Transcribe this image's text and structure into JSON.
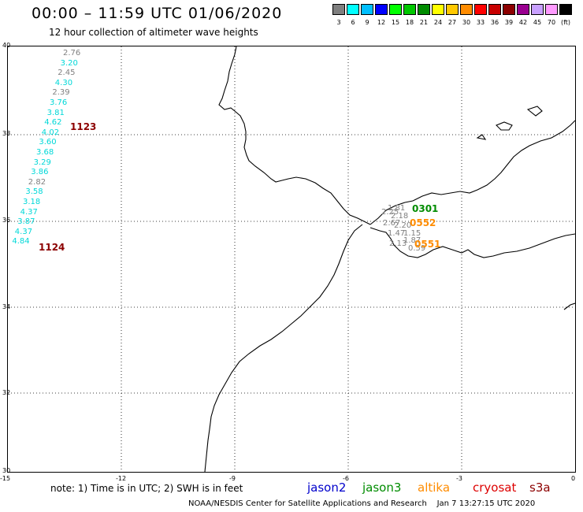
{
  "header": {
    "title": "00:00 – 11:59 UTC 01/06/2020",
    "subtitle": "12 hour collection of altimeter wave heights"
  },
  "color_scale": {
    "colors": [
      "#7f7f7f",
      "#00ffff",
      "#00bfff",
      "#0000ff",
      "#00ff00",
      "#00c800",
      "#008c00",
      "#ffff00",
      "#ffc800",
      "#ff8c00",
      "#ff0000",
      "#c80000",
      "#8c0000",
      "#9a0090",
      "#c8a0ff",
      "#ff9bff",
      "#000000"
    ],
    "labels": [
      "3",
      "6",
      "9",
      "12",
      "15",
      "18",
      "21",
      "24",
      "27",
      "30",
      "33",
      "36",
      "39",
      "42",
      "45",
      "70",
      "(ft)"
    ]
  },
  "axes": {
    "lat_labels": [
      "40",
      "38",
      "36",
      "34",
      "32",
      "30"
    ],
    "lon_labels": [
      "-15",
      "-12",
      "-9",
      "-6",
      "-3",
      "0"
    ]
  },
  "west_track": {
    "values": [
      {
        "v": "2.76",
        "c": "#808080"
      },
      {
        "v": "3.20",
        "c": "#00d8d8"
      },
      {
        "v": "2.45",
        "c": "#808080"
      },
      {
        "v": "4.30",
        "c": "#00d8d8"
      },
      {
        "v": "2.39",
        "c": "#808080"
      },
      {
        "v": "3.76",
        "c": "#00d8d8"
      },
      {
        "v": "3.81",
        "c": "#00d8d8"
      },
      {
        "v": "4.62",
        "c": "#00d8d8"
      },
      {
        "v": "4.02",
        "c": "#00d8d8"
      },
      {
        "v": "3.60",
        "c": "#00d8d8"
      },
      {
        "v": "3.68",
        "c": "#00d8d8"
      },
      {
        "v": "3.29",
        "c": "#00d8d8"
      },
      {
        "v": "3.86",
        "c": "#00d8d8"
      },
      {
        "v": "2.82",
        "c": "#808080"
      },
      {
        "v": "3.58",
        "c": "#00d8d8"
      },
      {
        "v": "3.18",
        "c": "#00d8d8"
      },
      {
        "v": "4.37",
        "c": "#00d8d8"
      },
      {
        "v": "3.87",
        "c": "#00d8d8"
      },
      {
        "v": "4.37",
        "c": "#00d8d8"
      },
      {
        "v": "4.84",
        "c": "#00d8d8"
      }
    ],
    "time_labels": [
      "1123",
      "1124"
    ]
  },
  "med_track": {
    "values": [
      "1.81",
      "2.25",
      "2.18",
      "2.67",
      "2.20",
      "1.47",
      "1.15",
      "2.13",
      "1.87",
      "0.59"
    ],
    "time_labels": [
      {
        "text": "0301",
        "color": "#008c00"
      },
      {
        "text": "0552",
        "color": "#ff8c00"
      },
      {
        "text": "0551",
        "color": "#ff8c00"
      }
    ]
  },
  "footer": {
    "note": "note: 1) Time is in UTC; 2) SWH is in feet",
    "satellites": [
      {
        "name": "jason2",
        "color": "#0000cc"
      },
      {
        "name": "jason3",
        "color": "#008c00"
      },
      {
        "name": "altika",
        "color": "#ff8c00"
      },
      {
        "name": "cryosat",
        "color": "#dd0000"
      },
      {
        "name": "s3a",
        "color": "#8c0000"
      }
    ],
    "credit": "NOAA/NESDIS Center for Satellite Applications and Research",
    "timestamp": "Jan  7 13:27:15 UTC 2020"
  }
}
